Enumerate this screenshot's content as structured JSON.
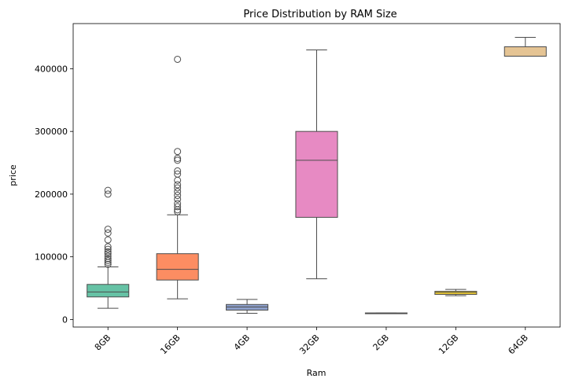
{
  "chart_data": {
    "type": "box",
    "title": "Price Distribution by RAM Size",
    "xlabel": "Ram",
    "ylabel": "price",
    "ylim": [
      -12000,
      472000
    ],
    "yticks": [
      0,
      100000,
      200000,
      300000,
      400000
    ],
    "ytick_labels": [
      "0",
      "100000",
      "200000",
      "300000",
      "400000"
    ],
    "grid": false,
    "legend": "none",
    "categories": [
      "8GB",
      "16GB",
      "4GB",
      "32GB",
      "2GB",
      "12GB",
      "64GB"
    ],
    "boxes": [
      {
        "category": "8GB",
        "whisker_low": 18000,
        "q1": 36000,
        "median": 44000,
        "q3": 56000,
        "whisker_high": 84000,
        "outliers": [
          88000,
          91000,
          94000,
          97000,
          101000,
          105000,
          108000,
          112000,
          116000,
          127000,
          138000,
          144000,
          200000,
          206000
        ],
        "color": "#66c2a5"
      },
      {
        "category": "16GB",
        "whisker_low": 33000,
        "q1": 63000,
        "median": 80000,
        "q3": 105000,
        "whisker_high": 167000,
        "outliers": [
          172000,
          175000,
          180000,
          185000,
          192000,
          198000,
          204000,
          210000,
          215000,
          222000,
          232000,
          237000,
          254000,
          257000,
          268000,
          415000
        ],
        "color": "#fc8d62"
      },
      {
        "category": "4GB",
        "whisker_low": 10000,
        "q1": 15000,
        "median": 20000,
        "q3": 24000,
        "whisker_high": 32000,
        "outliers": [],
        "color": "#8da0cb"
      },
      {
        "category": "32GB",
        "whisker_low": 65000,
        "q1": 163000,
        "median": 254000,
        "q3": 300000,
        "whisker_high": 430000,
        "outliers": [],
        "color": "#e78ac3"
      },
      {
        "category": "2GB",
        "whisker_low": 10000,
        "q1": 10000,
        "median": 10000,
        "q3": 10500,
        "whisker_high": 10500,
        "outliers": [],
        "color": "#a6d854"
      },
      {
        "category": "12GB",
        "whisker_low": 38000,
        "q1": 40000,
        "median": 43000,
        "q3": 45000,
        "whisker_high": 48000,
        "outliers": [],
        "color": "#ffd92f"
      },
      {
        "category": "64GB",
        "whisker_low": 420000,
        "q1": 420000,
        "median": 420000,
        "q3": 435000,
        "whisker_high": 450000,
        "outliers": [],
        "color": "#e5c494"
      }
    ],
    "style": {
      "line_color": "#4d4d4d",
      "outlier_face": "none",
      "outlier_edge": "#4d4d4d"
    }
  }
}
